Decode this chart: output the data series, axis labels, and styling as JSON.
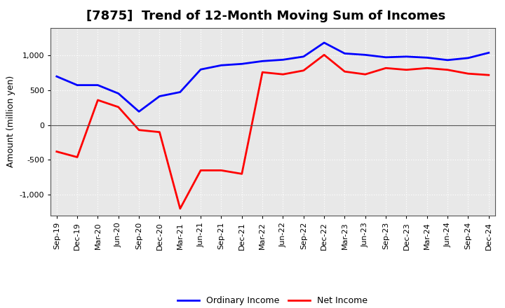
{
  "title": "[7875]  Trend of 12-Month Moving Sum of Incomes",
  "ylabel": "Amount (million yen)",
  "background_color": "#ffffff",
  "plot_bg_color": "#e8e8e8",
  "grid_color": "#ffffff",
  "labels": [
    "Sep-19",
    "Dec-19",
    "Mar-20",
    "Jun-20",
    "Sep-20",
    "Dec-20",
    "Mar-21",
    "Jun-21",
    "Sep-21",
    "Dec-21",
    "Mar-22",
    "Jun-22",
    "Sep-22",
    "Dec-22",
    "Mar-23",
    "Jun-23",
    "Sep-23",
    "Dec-23",
    "Mar-24",
    "Jun-24",
    "Sep-24",
    "Dec-24"
  ],
  "ordinary_income": [
    700,
    575,
    575,
    455,
    195,
    415,
    475,
    800,
    860,
    880,
    920,
    940,
    985,
    1185,
    1030,
    1010,
    975,
    985,
    970,
    935,
    965,
    1040
  ],
  "net_income": [
    -380,
    -460,
    360,
    260,
    -70,
    -100,
    -1200,
    -650,
    -650,
    -700,
    760,
    730,
    785,
    1010,
    770,
    730,
    820,
    795,
    820,
    795,
    740,
    720
  ],
  "ordinary_color": "#0000ff",
  "net_color": "#ff0000",
  "ylim": [
    -1300,
    1400
  ],
  "yticks": [
    -1000,
    -500,
    0,
    500,
    1000
  ],
  "legend_labels": [
    "Ordinary Income",
    "Net Income"
  ],
  "title_fontsize": 13,
  "axis_fontsize": 9,
  "tick_fontsize": 8,
  "line_width": 2.0
}
